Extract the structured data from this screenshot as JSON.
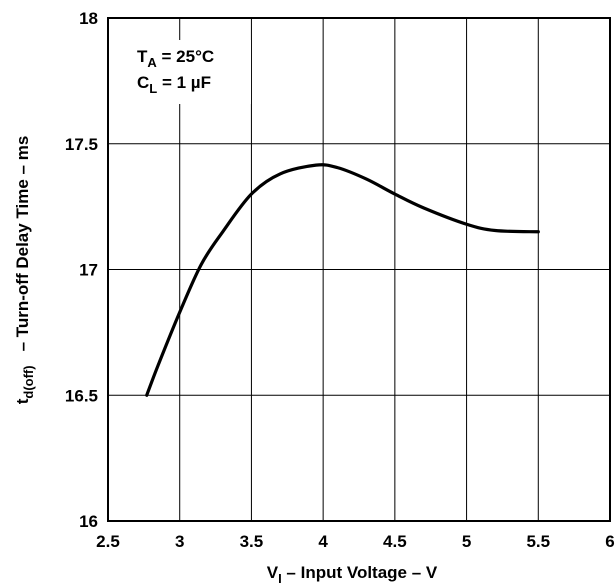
{
  "chart_data": {
    "type": "line",
    "xlim": [
      2.5,
      6
    ],
    "ylim": [
      16,
      18
    ],
    "x_ticks": [
      "2.5",
      "3",
      "3.5",
      "4",
      "4.5",
      "5",
      "5.5",
      "6"
    ],
    "y_ticks": [
      "16",
      "16.5",
      "17",
      "17.5",
      "18"
    ],
    "grid": true,
    "xlabel": {
      "main": "V",
      "sub": "I",
      "rest": " – Input Voltage – V"
    },
    "ylabel": {
      "main": "t",
      "sub": "d(off)",
      "rest": "– Turn-off Delay Time – ms"
    },
    "annotations": [
      {
        "main": "T",
        "sub": "A",
        "rest": " = 25°C"
      },
      {
        "main": "C",
        "sub": "L",
        "rest": " = 1 µF"
      }
    ],
    "series": [
      {
        "x": [
          2.77,
          2.85,
          3.0,
          3.15,
          3.3,
          3.5,
          3.7,
          3.95,
          4.1,
          4.3,
          4.5,
          4.7,
          5.0,
          5.2,
          5.5
        ],
        "y": [
          16.5,
          16.62,
          16.83,
          17.02,
          17.15,
          17.3,
          17.38,
          17.415,
          17.405,
          17.36,
          17.3,
          17.245,
          17.18,
          17.155,
          17.15
        ]
      }
    ]
  }
}
